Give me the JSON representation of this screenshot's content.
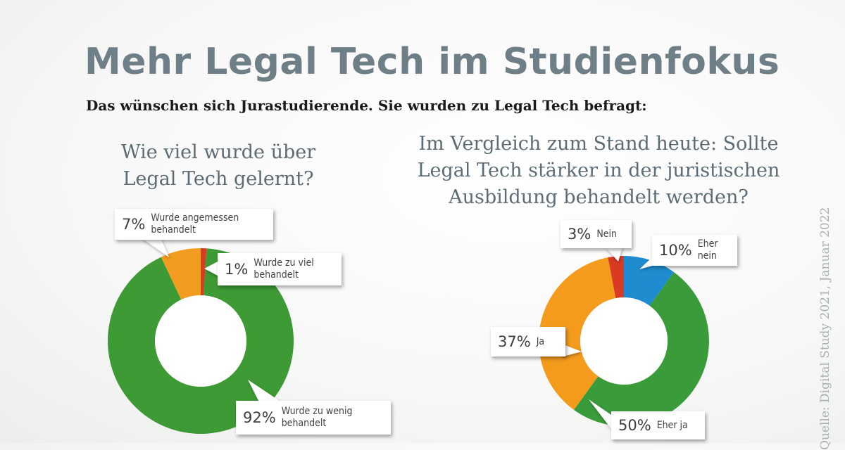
{
  "header": {
    "title": "Mehr Legal Tech im Studienfokus",
    "subtitle": "Das wünschen sich Jurastudierende. Sie wurden zu Legal Tech befragt:"
  },
  "source": "Quelle: Digital Study 2021, Januar 2022",
  "chart_data": [
    {
      "type": "pie",
      "title_lines": [
        "Wie viel wurde über",
        "Legal Tech gelernt?"
      ],
      "slices": [
        {
          "percent_label": "92%",
          "label": "Wurde zu wenig\nbehandelt",
          "value": 92,
          "color": "#3e9a35"
        },
        {
          "percent_label": "7%",
          "label": "Wurde angemessen\nbehandelt",
          "value": 7,
          "color": "#f29d1f"
        },
        {
          "percent_label": "1%",
          "label": "Wurde zu viel\nbehandelt",
          "value": 1,
          "color": "#d93a22"
        }
      ]
    },
    {
      "type": "pie",
      "title_lines": [
        "Im Vergleich zum Stand heute: Sollte",
        "Legal Tech stärker in der juristischen",
        "Ausbildung behandelt werden?"
      ],
      "slices": [
        {
          "percent_label": "3%",
          "label": "Nein",
          "value": 3,
          "color": "#d93a22"
        },
        {
          "percent_label": "10%",
          "label": "Eher\nnein",
          "value": 10,
          "color": "#1e8ccf"
        },
        {
          "percent_label": "50%",
          "label": "Eher ja",
          "value": 50,
          "color": "#3a9b3a"
        },
        {
          "percent_label": "37%",
          "label": "Ja",
          "value": 37,
          "color": "#f49b1e"
        }
      ]
    }
  ]
}
